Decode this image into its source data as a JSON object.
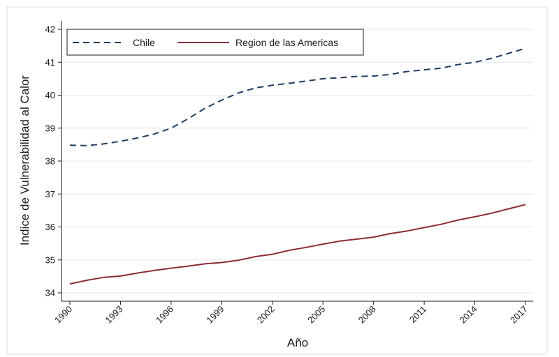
{
  "chart_data": {
    "type": "line",
    "xlabel": "Año",
    "ylabel": "Indice de Vulnerabilidad al Calor",
    "xlim": [
      1990,
      2017
    ],
    "ylim": [
      34,
      42
    ],
    "xticks": [
      1990,
      1993,
      1996,
      1999,
      2002,
      2005,
      2008,
      2011,
      2014,
      2017
    ],
    "yticks": [
      34,
      35,
      36,
      37,
      38,
      39,
      40,
      41,
      42
    ],
    "grid": "horizontal",
    "legend_position": "top-left",
    "x": [
      1990,
      1991,
      1992,
      1993,
      1994,
      1995,
      1996,
      1997,
      1998,
      1999,
      2000,
      2001,
      2002,
      2003,
      2004,
      2005,
      2006,
      2007,
      2008,
      2009,
      2010,
      2011,
      2012,
      2013,
      2014,
      2015,
      2016,
      2017
    ],
    "series": [
      {
        "name": "Chile",
        "color": "#1f3d60",
        "style": "dashed",
        "values": [
          38.48,
          38.47,
          38.52,
          38.6,
          38.7,
          38.82,
          39.0,
          39.28,
          39.6,
          39.85,
          40.07,
          40.22,
          40.3,
          40.36,
          40.43,
          40.5,
          40.53,
          40.57,
          40.58,
          40.63,
          40.72,
          40.77,
          40.82,
          40.93,
          41.0,
          41.12,
          41.27,
          41.42
        ]
      },
      {
        "name": "Region de las Americas",
        "color": "#8b2d35",
        "style": "solid",
        "values": [
          34.27,
          34.38,
          34.47,
          34.51,
          34.6,
          34.68,
          34.75,
          34.81,
          34.88,
          34.92,
          34.99,
          35.1,
          35.17,
          35.29,
          35.38,
          35.48,
          35.57,
          35.63,
          35.69,
          35.8,
          35.88,
          35.98,
          36.08,
          36.21,
          36.31,
          36.42,
          36.55,
          36.68
        ]
      }
    ]
  }
}
